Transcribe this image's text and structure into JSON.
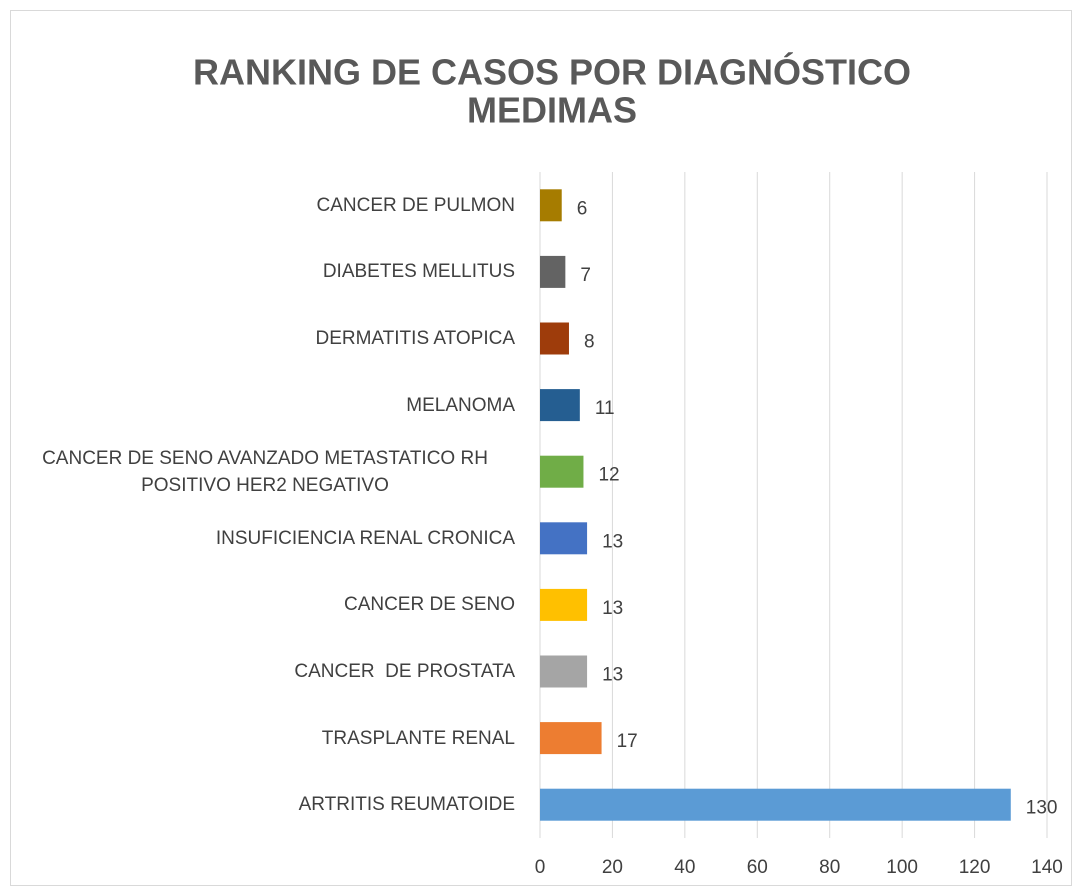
{
  "chart_data": {
    "type": "bar",
    "orientation": "horizontal",
    "title": [
      "RANKING DE CASOS POR DIAGNÓSTICO",
      "MEDIMAS"
    ],
    "categories": [
      "CANCER DE PULMON",
      "DIABETES MELLITUS",
      "DERMATITIS ATOPICA",
      "MELANOMA",
      "CANCER DE SENO AVANZADO METASTATICO RH POSITIVO HER2 NEGATIVO",
      "INSUFICIENCIA RENAL CRONICA",
      "CANCER DE SENO",
      "CANCER  DE PROSTATA",
      "TRASPLANTE RENAL",
      "ARTRITIS REUMATOIDE"
    ],
    "values": [
      6,
      7,
      8,
      11,
      12,
      13,
      13,
      13,
      17,
      130
    ],
    "colors": [
      "#a67c00",
      "#636363",
      "#9e3c0b",
      "#255e91",
      "#70ad47",
      "#4472c4",
      "#ffc000",
      "#a5a5a5",
      "#ed7d31",
      "#5b9bd5"
    ],
    "xlim": [
      0,
      140
    ],
    "xticks": [
      0,
      20,
      40,
      60,
      80,
      100,
      120,
      140
    ],
    "grid": true
  }
}
